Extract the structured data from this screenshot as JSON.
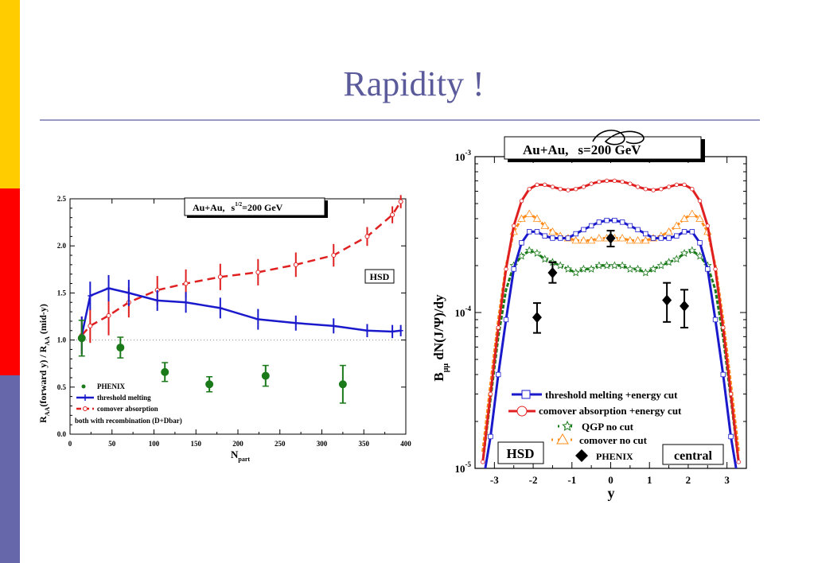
{
  "slide": {
    "title": "Rapidity !",
    "side_colors": [
      "#ffcc00",
      "#ff0000",
      "#6666aa"
    ]
  },
  "chart_data": [
    {
      "type": "line",
      "annotation_box": {
        "label": "Au+Au,",
        "root": "s",
        "sup": "1/2",
        "rest": "=200 GeV"
      },
      "model_box": "HSD",
      "xlabel": "N",
      "xlabel_sub": "part",
      "ylabel": "R",
      "ylabel_sub": "AA",
      "ylabel_mid": "(forward y) / R",
      "ylabel_sub2": "AA",
      "ylabel_end": " (mid-y)",
      "xlim": [
        0,
        400
      ],
      "ylim": [
        0,
        2.5
      ],
      "xticks": [
        "0",
        "50",
        "100",
        "150",
        "200",
        "250",
        "300",
        "350",
        "400"
      ],
      "yticks": [
        "0.0",
        "0.5",
        "1.0",
        "1.5",
        "2.0",
        "2.5"
      ],
      "reference_line": 1.0,
      "series": [
        {
          "name": "PHENIX",
          "style": "points",
          "color": "#1a7a1a",
          "x": [
            14,
            60,
            113,
            166,
            233,
            325
          ],
          "y": [
            1.02,
            0.92,
            0.66,
            0.53,
            0.62,
            0.53
          ],
          "err": [
            0.19,
            0.11,
            0.1,
            0.08,
            0.11,
            0.2
          ]
        },
        {
          "name": "threshold melting",
          "style": "line",
          "color": "#1a1acc",
          "x": [
            14,
            24,
            46,
            70,
            104,
            138,
            179,
            224,
            269,
            314,
            354,
            384,
            394
          ],
          "y": [
            1.05,
            1.47,
            1.55,
            1.5,
            1.42,
            1.4,
            1.34,
            1.22,
            1.18,
            1.15,
            1.1,
            1.09,
            1.1
          ],
          "err": [
            0.2,
            0.15,
            0.14,
            0.14,
            0.11,
            0.11,
            0.11,
            0.11,
            0.08,
            0.08,
            0.07,
            0.07,
            0.06
          ]
        },
        {
          "name": "comover absorption",
          "style": "dashed",
          "color": "#e02020",
          "x": [
            14,
            24,
            46,
            70,
            104,
            138,
            179,
            224,
            269,
            314,
            354,
            384,
            394
          ],
          "y": [
            1.05,
            1.15,
            1.26,
            1.4,
            1.53,
            1.6,
            1.67,
            1.72,
            1.8,
            1.9,
            2.1,
            2.33,
            2.47
          ],
          "err": [
            0.2,
            0.18,
            0.21,
            0.16,
            0.15,
            0.15,
            0.14,
            0.14,
            0.13,
            0.12,
            0.1,
            0.09,
            0.07
          ]
        }
      ],
      "legend": [
        "PHENIX",
        "threshold melting",
        "comover absorption",
        "both with recombination (D+Dbar)"
      ]
    },
    {
      "type": "line",
      "annotation_box": {
        "label": "Au+Au,",
        "root": "s",
        "rest": "=200 GeV"
      },
      "model_box": "HSD",
      "centrality_box": "central",
      "xlabel": "y",
      "ylabel": "B",
      "ylabel_sub": "μμ",
      "ylabel_rest": " dN(J/Ψ)/dy",
      "xlim": [
        -3.5,
        3.5
      ],
      "ylim": [
        1e-05,
        0.001
      ],
      "yscale": "log",
      "xticks": [
        "-3",
        "-2",
        "-1",
        "0",
        "1",
        "2",
        "3"
      ],
      "ytick_labels": [
        {
          "base": "10",
          "exp": "-3"
        },
        {
          "base": "10",
          "exp": "-4"
        },
        {
          "base": "10",
          "exp": "-5"
        }
      ],
      "series": [
        {
          "name": "threshold melting +energy cut",
          "style": "line",
          "color": "#1a1acc",
          "x": [
            -3.3,
            -3.1,
            -2.9,
            -2.7,
            -2.5,
            -2.3,
            -2.1,
            -1.9,
            -1.7,
            -1.5,
            -1.3,
            -1.1,
            -0.9,
            -0.7,
            -0.5,
            -0.3,
            -0.1,
            0.1,
            0.3,
            0.5,
            0.7,
            0.9,
            1.1,
            1.3,
            1.5,
            1.7,
            1.9,
            2.1,
            2.3,
            2.5,
            2.7,
            2.9,
            3.1,
            3.3
          ],
          "y": [
            8e-06,
            1.6e-05,
            4e-05,
            9e-05,
            0.00019,
            0.00028,
            0.00033,
            0.00033,
            0.00031,
            0.0003,
            0.0003,
            0.0003,
            0.00032,
            0.00034,
            0.00036,
            0.00038,
            0.00039,
            0.00039,
            0.00038,
            0.00036,
            0.00034,
            0.00032,
            0.0003,
            0.0003,
            0.0003,
            0.00031,
            0.00033,
            0.00033,
            0.00028,
            0.00019,
            9e-05,
            4e-05,
            1.6e-05,
            8e-06
          ]
        },
        {
          "name": "comover absorption +energy cut",
          "style": "line",
          "color": "#e02020",
          "x": [
            -3.3,
            -3.1,
            -2.9,
            -2.7,
            -2.5,
            -2.3,
            -2.1,
            -1.9,
            -1.7,
            -1.5,
            -1.3,
            -1.1,
            -0.9,
            -0.7,
            -0.5,
            -0.3,
            -0.1,
            0.1,
            0.3,
            0.5,
            0.7,
            0.9,
            1.1,
            1.3,
            1.5,
            1.7,
            1.9,
            2.1,
            2.3,
            2.5,
            2.7,
            2.9,
            3.1,
            3.3
          ],
          "y": [
            1.1e-05,
            3e-05,
            8e-05,
            0.00019,
            0.00036,
            0.00052,
            0.00062,
            0.00066,
            0.00066,
            0.00064,
            0.00062,
            0.00061,
            0.00062,
            0.00064,
            0.00067,
            0.00069,
            0.0007,
            0.0007,
            0.00069,
            0.00067,
            0.00064,
            0.00062,
            0.00061,
            0.00062,
            0.00064,
            0.00066,
            0.00066,
            0.00062,
            0.00052,
            0.00036,
            0.00019,
            8e-05,
            3e-05,
            1.1e-05
          ]
        },
        {
          "name": "QGP no cut",
          "style": "dotted",
          "color": "#1a7a1a",
          "x": [
            -3.3,
            -3.1,
            -2.9,
            -2.7,
            -2.5,
            -2.3,
            -2.1,
            -1.9,
            -1.7,
            -1.5,
            -1.3,
            -1.1,
            -0.9,
            -0.7,
            -0.5,
            -0.3,
            -0.1,
            0.1,
            0.3,
            0.5,
            0.7,
            0.9,
            1.1,
            1.3,
            1.5,
            1.7,
            1.9,
            2.1,
            2.3,
            2.5,
            2.7,
            2.9,
            3.1,
            3.3
          ],
          "y": [
            1.1e-05,
            2.8e-05,
            7e-05,
            0.00014,
            0.0002,
            0.00023,
            0.00025,
            0.00024,
            0.00022,
            0.00021,
            0.0002,
            0.00019,
            0.00018,
            0.00019,
            0.00019,
            0.0002,
            0.0002,
            0.0002,
            0.0002,
            0.00019,
            0.00019,
            0.00018,
            0.00019,
            0.0002,
            0.00021,
            0.00022,
            0.00024,
            0.00025,
            0.00023,
            0.0002,
            0.00014,
            7e-05,
            2.8e-05,
            1.1e-05
          ]
        },
        {
          "name": "comover no cut",
          "style": "dotted",
          "color": "#ff8c1a",
          "x": [
            -3.3,
            -3.1,
            -2.9,
            -2.7,
            -2.5,
            -2.3,
            -2.1,
            -1.9,
            -1.7,
            -1.5,
            -1.3,
            -1.1,
            -0.9,
            -0.7,
            -0.5,
            -0.3,
            -0.1,
            0.1,
            0.3,
            0.5,
            0.7,
            0.9,
            1.1,
            1.3,
            1.5,
            1.7,
            1.9,
            2.1,
            2.3,
            2.5,
            2.7,
            2.9,
            3.1,
            3.3
          ],
          "y": [
            1.3e-05,
            3.5e-05,
            9e-05,
            0.0002,
            0.00033,
            0.0004,
            0.00043,
            0.0004,
            0.00036,
            0.00033,
            0.00031,
            0.0003,
            0.00029,
            0.00029,
            0.00029,
            0.0003,
            0.0003,
            0.0003,
            0.0003,
            0.00029,
            0.00029,
            0.00029,
            0.0003,
            0.00031,
            0.00033,
            0.00036,
            0.0004,
            0.00043,
            0.0004,
            0.00033,
            0.0002,
            9e-05,
            3.5e-05,
            1.3e-05
          ]
        },
        {
          "name": "PHENIX",
          "style": "diamonds",
          "color": "#000000",
          "x": [
            -1.9,
            -1.5,
            0.0,
            1.45,
            1.9
          ],
          "y": [
            9.3e-05,
            0.00018,
            0.0003,
            0.00012,
            0.00011
          ],
          "err_lo": [
            7.4e-05,
            0.000155,
            0.000265,
            8.7e-05,
            8e-05
          ],
          "err_hi": [
            0.000115,
            0.00021,
            0.000335,
            0.000155,
            0.00014
          ]
        }
      ],
      "legend": [
        "threshold melting +energy cut",
        "comover absorption +energy cut",
        "QGP no cut",
        "comover no cut",
        "PHENIX"
      ]
    }
  ]
}
